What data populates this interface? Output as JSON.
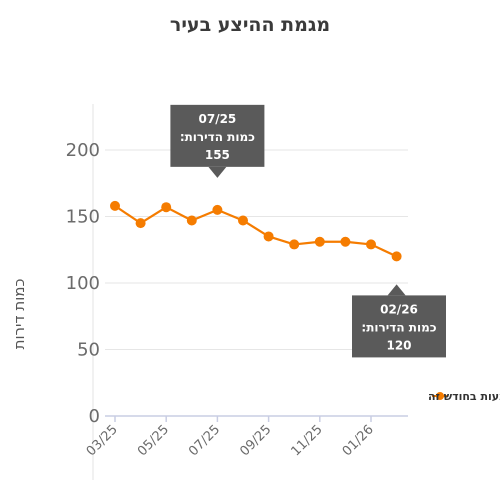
{
  "chart_data": {
    "type": "line",
    "title": "מגמת ההיצע בעיר",
    "ylabel": "כמות דירות",
    "xlabel": "",
    "ylim": [
      0,
      200
    ],
    "yticks": [
      0,
      50,
      100,
      150,
      200
    ],
    "grid": true,
    "legend_position": "right",
    "x": [
      "03/25",
      "04/25",
      "05/25",
      "06/25",
      "07/25",
      "08/25",
      "09/25",
      "10/25",
      "11/25",
      "12/25",
      "01/26",
      "02/26"
    ],
    "x_tick_labels": [
      "03/25",
      "05/25",
      "07/25",
      "09/25",
      "11/25",
      "01/26"
    ],
    "series": [
      {
        "name": "כמות הדירות המוצעות בחודש זה",
        "color": "#f57c00",
        "values": [
          158,
          145,
          157,
          147,
          155,
          147,
          135,
          129,
          131,
          131,
          129,
          120
        ]
      }
    ],
    "tooltips": [
      {
        "index": 4,
        "date": "07/25",
        "label": "כמות הדירות:",
        "value": "155"
      },
      {
        "index": 11,
        "date": "02/26",
        "label": "כמות הדירות:",
        "value": "120"
      }
    ]
  },
  "colors": {
    "line": "#f57c00",
    "tooltip_bg": "#5a5a5a",
    "grid": "#e6e6e6",
    "axis": "#c9cde3"
  }
}
